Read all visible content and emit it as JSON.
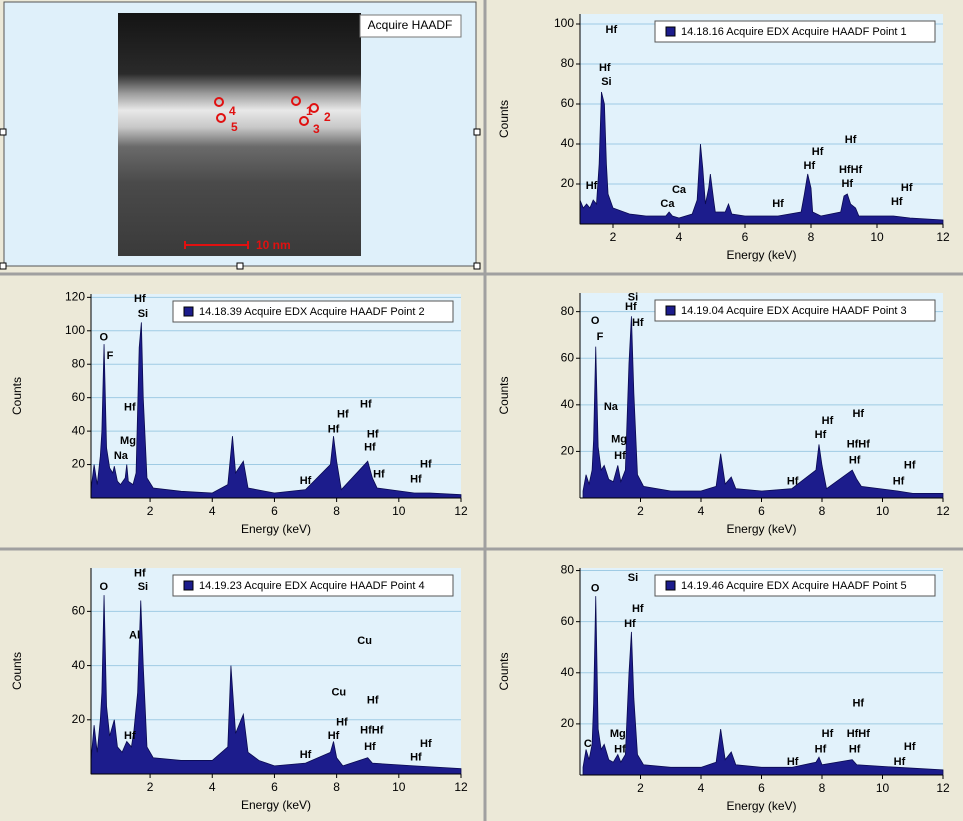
{
  "image_panel": {
    "label": "Acquire HAADF",
    "scale_bar": "10 nm",
    "points": [
      "1",
      "2",
      "3",
      "4",
      "5"
    ]
  },
  "chart_data": [
    {
      "type": "area",
      "xlabel": "Energy (keV)",
      "ylabel": "Counts",
      "xlim": [
        1,
        12
      ],
      "ylim": [
        0,
        105
      ],
      "xticks": [
        2,
        4,
        6,
        8,
        10,
        12
      ],
      "yticks": [
        20,
        40,
        60,
        80,
        100
      ],
      "grid": true,
      "x": [
        1.0,
        1.1,
        1.2,
        1.3,
        1.4,
        1.5,
        1.58,
        1.65,
        1.74,
        1.8,
        1.85,
        2.0,
        2.5,
        3.0,
        3.6,
        3.7,
        3.8,
        4.0,
        4.4,
        4.55,
        4.65,
        4.72,
        4.8,
        4.9,
        4.95,
        5.05,
        5.1,
        5.4,
        5.5,
        5.6,
        6.0,
        7.0,
        7.7,
        7.8,
        7.9,
        8.0,
        8.05,
        8.3,
        8.9,
        9.0,
        9.1,
        9.2,
        9.35,
        9.45,
        10.5,
        11.0,
        12.0
      ],
      "series": [
        {
          "name": "14.18.16 Acquire EDX Acquire HAADF Point 1",
          "color": "#1c1c8c",
          "values": [
            12,
            8,
            10,
            8,
            12,
            10,
            30,
            66,
            60,
            30,
            15,
            8,
            5,
            4,
            4,
            6,
            4,
            3,
            5,
            12,
            40,
            28,
            10,
            18,
            25,
            12,
            6,
            6,
            10,
            5,
            4,
            4,
            6,
            15,
            25,
            18,
            6,
            4,
            6,
            14,
            15,
            10,
            8,
            4,
            4,
            3,
            2
          ]
        }
      ],
      "annotations": [
        {
          "text": "Hf",
          "x": 1.95,
          "y": 97
        },
        {
          "text": "Hf",
          "x": 1.75,
          "y": 78
        },
        {
          "text": "Si",
          "x": 1.8,
          "y": 71
        },
        {
          "text": "Hf",
          "x": 1.35,
          "y": 19
        },
        {
          "text": "Ca",
          "x": 3.65,
          "y": 10
        },
        {
          "text": "Ca",
          "x": 4.0,
          "y": 17
        },
        {
          "text": "Hf",
          "x": 7.0,
          "y": 10
        },
        {
          "text": "Hf",
          "x": 7.95,
          "y": 29
        },
        {
          "text": "Hf",
          "x": 8.2,
          "y": 36
        },
        {
          "text": "Hf",
          "x": 9.2,
          "y": 42
        },
        {
          "text": "HfHf",
          "x": 9.2,
          "y": 27
        },
        {
          "text": "Hf",
          "x": 9.1,
          "y": 20
        },
        {
          "text": "Hf",
          "x": 10.9,
          "y": 18
        },
        {
          "text": "Hf",
          "x": 10.6,
          "y": 11
        }
      ]
    },
    {
      "type": "area",
      "xlabel": "Energy (keV)",
      "ylabel": "Counts",
      "xlim": [
        0.1,
        12
      ],
      "ylim": [
        0,
        122
      ],
      "xticks": [
        2,
        4,
        6,
        8,
        10,
        12
      ],
      "yticks": [
        20,
        40,
        60,
        80,
        100,
        120
      ],
      "grid": true,
      "x": [
        0.1,
        0.2,
        0.3,
        0.4,
        0.45,
        0.52,
        0.6,
        0.7,
        0.8,
        0.85,
        0.95,
        1.05,
        1.2,
        1.25,
        1.3,
        1.45,
        1.55,
        1.65,
        1.72,
        1.78,
        1.9,
        2.1,
        3.0,
        4.0,
        4.5,
        4.65,
        4.75,
        5.0,
        5.15,
        6.0,
        7.0,
        7.8,
        7.9,
        8.0,
        8.15,
        9.0,
        9.15,
        9.3,
        10.5,
        11.0,
        12.0
      ],
      "series": [
        {
          "name": "14.18.39 Acquire EDX Acquire HAADF Point 2",
          "color": "#1c1c8c",
          "values": [
            5,
            20,
            8,
            25,
            40,
            92,
            30,
            18,
            15,
            19,
            10,
            8,
            12,
            20,
            10,
            8,
            15,
            90,
            105,
            60,
            12,
            6,
            4,
            3,
            8,
            37,
            15,
            22,
            6,
            3,
            5,
            20,
            37,
            22,
            5,
            22,
            12,
            6,
            3,
            3,
            2
          ]
        }
      ],
      "annotations": [
        {
          "text": "Hf",
          "x": 1.67,
          "y": 119
        },
        {
          "text": "Si",
          "x": 1.77,
          "y": 110
        },
        {
          "text": "O",
          "x": 0.51,
          "y": 96
        },
        {
          "text": "F",
          "x": 0.71,
          "y": 85
        },
        {
          "text": "Hf",
          "x": 1.35,
          "y": 54
        },
        {
          "text": "Mg",
          "x": 1.29,
          "y": 34
        },
        {
          "text": "Na",
          "x": 1.06,
          "y": 25
        },
        {
          "text": "Hf",
          "x": 7.0,
          "y": 10
        },
        {
          "text": "Hf",
          "x": 7.9,
          "y": 41
        },
        {
          "text": "Hf",
          "x": 8.2,
          "y": 50
        },
        {
          "text": "Hf",
          "x": 8.94,
          "y": 56
        },
        {
          "text": "Hf",
          "x": 9.16,
          "y": 38
        },
        {
          "text": "Hf",
          "x": 9.07,
          "y": 30
        },
        {
          "text": "Hf",
          "x": 9.36,
          "y": 14
        },
        {
          "text": "Hf",
          "x": 10.87,
          "y": 20
        },
        {
          "text": "Hf",
          "x": 10.55,
          "y": 11
        }
      ]
    },
    {
      "type": "area",
      "xlabel": "Energy (keV)",
      "ylabel": "Counts",
      "xlim": [
        0,
        12
      ],
      "ylim": [
        0,
        88
      ],
      "xticks": [
        2,
        4,
        6,
        8,
        10,
        12
      ],
      "yticks": [
        20,
        40,
        60,
        80
      ],
      "grid": true,
      "x": [
        0.1,
        0.2,
        0.3,
        0.4,
        0.45,
        0.52,
        0.6,
        0.7,
        0.8,
        0.95,
        1.1,
        1.25,
        1.35,
        1.5,
        1.62,
        1.7,
        1.78,
        1.9,
        2.1,
        3.0,
        4.0,
        4.5,
        4.65,
        4.8,
        5.0,
        5.15,
        6.0,
        7.0,
        7.8,
        7.9,
        8.0,
        8.15,
        9.0,
        9.15,
        9.3,
        10.5,
        11.0,
        12.0
      ],
      "series": [
        {
          "name": "14.19.04 Acquire EDX Acquire HAADF Point 3",
          "color": "#1c1c8c",
          "values": [
            3,
            10,
            6,
            12,
            25,
            65,
            22,
            12,
            14,
            8,
            7,
            14,
            7,
            12,
            58,
            78,
            45,
            10,
            5,
            3,
            3,
            5,
            19,
            6,
            9,
            4,
            3,
            4,
            12,
            23,
            14,
            4,
            12,
            8,
            5,
            3,
            2,
            2
          ]
        }
      ],
      "annotations": [
        {
          "text": "Si",
          "x": 1.75,
          "y": 86
        },
        {
          "text": "Hf",
          "x": 1.68,
          "y": 82
        },
        {
          "text": "Hf",
          "x": 1.91,
          "y": 75
        },
        {
          "text": "O",
          "x": 0.5,
          "y": 76
        },
        {
          "text": "F",
          "x": 0.66,
          "y": 69
        },
        {
          "text": "Na",
          "x": 1.02,
          "y": 39
        },
        {
          "text": "Mg",
          "x": 1.29,
          "y": 25
        },
        {
          "text": "Hf",
          "x": 1.32,
          "y": 18
        },
        {
          "text": "Hf",
          "x": 7.03,
          "y": 7
        },
        {
          "text": "Hf",
          "x": 7.95,
          "y": 27
        },
        {
          "text": "Hf",
          "x": 8.18,
          "y": 33
        },
        {
          "text": "Hf",
          "x": 9.2,
          "y": 36
        },
        {
          "text": "HfHf",
          "x": 9.2,
          "y": 23
        },
        {
          "text": "Hf",
          "x": 9.08,
          "y": 16
        },
        {
          "text": "Hf",
          "x": 10.9,
          "y": 14
        },
        {
          "text": "Hf",
          "x": 10.53,
          "y": 7
        }
      ]
    },
    {
      "type": "area",
      "xlabel": "Energy (keV)",
      "ylabel": "Counts",
      "xlim": [
        0.1,
        12
      ],
      "ylim": [
        0,
        76
      ],
      "xticks": [
        2,
        4,
        6,
        8,
        10,
        12
      ],
      "yticks": [
        20,
        40,
        60
      ],
      "grid": true,
      "x": [
        0.1,
        0.2,
        0.3,
        0.4,
        0.45,
        0.52,
        0.6,
        0.7,
        0.85,
        0.95,
        1.1,
        1.25,
        1.4,
        1.48,
        1.6,
        1.7,
        1.78,
        1.9,
        2.1,
        3.0,
        4.0,
        4.5,
        4.6,
        4.75,
        5.0,
        5.15,
        5.5,
        6.0,
        7.0,
        7.8,
        7.9,
        8.0,
        8.2,
        9.0,
        9.15,
        10.5,
        12.0
      ],
      "series": [
        {
          "name": "14.19.23 Acquire EDX Acquire HAADF Point 4",
          "color": "#1c1c8c",
          "values": [
            5,
            18,
            8,
            20,
            30,
            66,
            25,
            14,
            20,
            10,
            8,
            12,
            10,
            16,
            30,
            64,
            40,
            10,
            6,
            5,
            5,
            10,
            40,
            15,
            22,
            8,
            5,
            3,
            4,
            8,
            12,
            6,
            3,
            6,
            4,
            3,
            2
          ]
        }
      ],
      "annotations": [
        {
          "text": "Hf",
          "x": 1.67,
          "y": 74
        },
        {
          "text": "Si",
          "x": 1.77,
          "y": 69
        },
        {
          "text": "O",
          "x": 0.51,
          "y": 69
        },
        {
          "text": "Al",
          "x": 1.5,
          "y": 51
        },
        {
          "text": "Cu",
          "x": 8.9,
          "y": 49
        },
        {
          "text": "Cu",
          "x": 8.07,
          "y": 30
        },
        {
          "text": "Hf",
          "x": 8.17,
          "y": 19
        },
        {
          "text": "Hf",
          "x": 9.16,
          "y": 27
        },
        {
          "text": "Hf",
          "x": 7.9,
          "y": 14
        },
        {
          "text": "HfHf",
          "x": 9.13,
          "y": 16
        },
        {
          "text": "Hf",
          "x": 9.07,
          "y": 10
        },
        {
          "text": "Hf",
          "x": 1.35,
          "y": 14
        },
        {
          "text": "Hf",
          "x": 7.0,
          "y": 7
        },
        {
          "text": "Hf",
          "x": 10.87,
          "y": 11
        },
        {
          "text": "Hf",
          "x": 10.55,
          "y": 6
        }
      ]
    },
    {
      "type": "area",
      "xlabel": "Energy (keV)",
      "ylabel": "Counts",
      "xlim": [
        0,
        12
      ],
      "ylim": [
        0,
        81
      ],
      "xticks": [
        2,
        4,
        6,
        8,
        10,
        12
      ],
      "yticks": [
        20,
        40,
        60,
        80
      ],
      "grid": true,
      "x": [
        0.1,
        0.2,
        0.3,
        0.4,
        0.45,
        0.52,
        0.6,
        0.7,
        0.8,
        0.95,
        1.1,
        1.25,
        1.35,
        1.5,
        1.62,
        1.7,
        1.78,
        1.9,
        2.1,
        3.0,
        4.0,
        4.5,
        4.65,
        4.8,
        5.0,
        5.15,
        6.0,
        7.0,
        7.8,
        7.9,
        8.0,
        9.0,
        9.15,
        10.5,
        12.0
      ],
      "series": [
        {
          "name": "14.19.46 Acquire EDX Acquire HAADF Point 5",
          "color": "#1c1c8c",
          "values": [
            3,
            10,
            6,
            12,
            28,
            70,
            18,
            10,
            12,
            6,
            5,
            8,
            5,
            8,
            40,
            56,
            30,
            8,
            4,
            3,
            3,
            5,
            18,
            6,
            9,
            4,
            3,
            3,
            5,
            7,
            4,
            6,
            4,
            3,
            2
          ]
        }
      ],
      "annotations": [
        {
          "text": "O",
          "x": 0.5,
          "y": 73
        },
        {
          "text": "Si",
          "x": 1.75,
          "y": 77
        },
        {
          "text": "Hf",
          "x": 1.91,
          "y": 65
        },
        {
          "text": "Hf",
          "x": 1.65,
          "y": 59
        },
        {
          "text": "C",
          "x": 0.26,
          "y": 12
        },
        {
          "text": "Mg",
          "x": 1.25,
          "y": 16
        },
        {
          "text": "Hf",
          "x": 1.32,
          "y": 10
        },
        {
          "text": "Hf",
          "x": 7.03,
          "y": 5
        },
        {
          "text": "Hf",
          "x": 7.95,
          "y": 10
        },
        {
          "text": "Hf",
          "x": 8.18,
          "y": 16
        },
        {
          "text": "Hf",
          "x": 9.2,
          "y": 28
        },
        {
          "text": "HfHf",
          "x": 9.2,
          "y": 16
        },
        {
          "text": "Hf",
          "x": 9.08,
          "y": 10
        },
        {
          "text": "Hf",
          "x": 10.9,
          "y": 11
        },
        {
          "text": "Hf",
          "x": 10.56,
          "y": 5
        }
      ]
    }
  ]
}
